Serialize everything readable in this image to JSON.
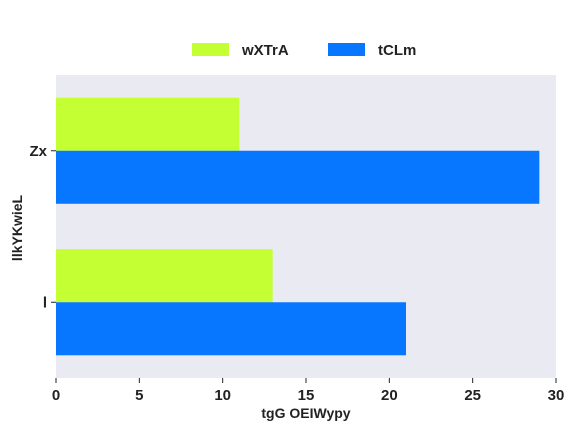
{
  "chart_data": {
    "type": "bar",
    "orientation": "horizontal",
    "categories": [
      "Zx",
      "l"
    ],
    "series": [
      {
        "name": "wXTrA",
        "color": "#c3ff33",
        "values": [
          11,
          13
        ]
      },
      {
        "name": "tCLm",
        "color": "#0777ff",
        "values": [
          29,
          21
        ]
      }
    ],
    "xlabel": "tgG OEIWypy",
    "ylabel": "llkYKwieL",
    "xlim": [
      0,
      30
    ],
    "xticks": [
      0,
      5,
      10,
      15,
      20,
      25,
      30
    ],
    "grid": false,
    "legend_position": "top-center",
    "plot_background": "#eaeaf2"
  }
}
